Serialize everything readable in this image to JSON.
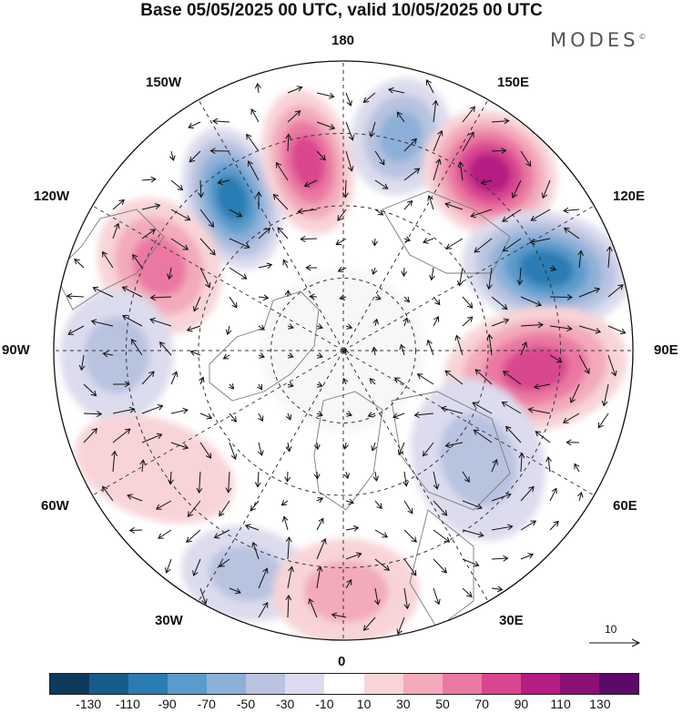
{
  "title": "Base 05/05/2025 00 UTC, valid 10/05/2025 00 UTC",
  "brand": "MODES",
  "brand_mark": "©",
  "longitude_labels": {
    "l180": "180",
    "l150e": "150E",
    "l120e": "120E",
    "l90e": "90E",
    "l60e": "60E",
    "l30e": "30E",
    "l0": "0",
    "l30w": "30W",
    "l60w": "60W",
    "l90w": "90W",
    "l120w": "120W",
    "l150w": "150W"
  },
  "reference_vector": "10",
  "colorbar": {
    "colors": [
      "#0d3a5a",
      "#175c8a",
      "#2b7bb4",
      "#5a9bcc",
      "#8db0d8",
      "#b8c3e0",
      "#dcdcee",
      "#ffffff",
      "#f8d4d8",
      "#f3aabb",
      "#ea78a2",
      "#d9468f",
      "#b51c84",
      "#8c0f76",
      "#5c0a68"
    ],
    "ticks": [
      "-130",
      "-110",
      "-90",
      "-70",
      "-50",
      "-30",
      "-10",
      "10",
      "30",
      "50",
      "70",
      "90",
      "110",
      "130"
    ]
  },
  "anomaly_centers": [
    {
      "lon_label": "150W-180",
      "sign": "negative",
      "value": -110
    },
    {
      "lon_label": "180",
      "sign": "positive",
      "value": 90
    },
    {
      "lon_label": "160E",
      "sign": "negative",
      "value": -70
    },
    {
      "lon_label": "140E",
      "sign": "positive",
      "value": 110
    },
    {
      "lon_label": "110E",
      "sign": "negative",
      "value": -110
    },
    {
      "lon_label": "80E",
      "sign": "positive",
      "value": 90
    },
    {
      "lon_label": "120W",
      "sign": "positive",
      "value": 70
    },
    {
      "lon_label": "90W",
      "sign": "negative",
      "value": -50
    },
    {
      "lon_label": "60W",
      "sign": "positive",
      "value": 30
    },
    {
      "lon_label": "30W",
      "sign": "negative",
      "value": -50
    },
    {
      "lon_label": "0",
      "sign": "positive",
      "value": 50
    },
    {
      "lon_label": "30E",
      "sign": "negative",
      "value": -50
    }
  ]
}
